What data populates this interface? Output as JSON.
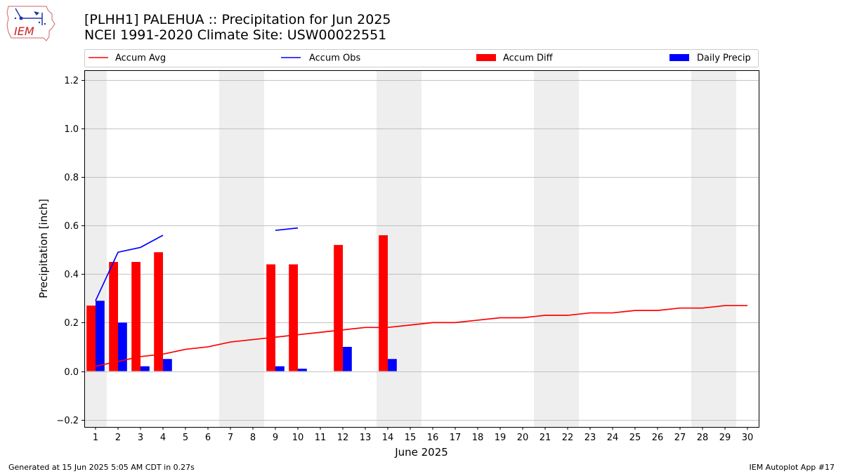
{
  "header": {
    "title_line1": "[PLHH1] PALEHUA :: Precipitation for Jun 2025",
    "title_line2": "NCEI 1991-2020 Climate Site: USW00022551",
    "logo_text": "IEM"
  },
  "footer": {
    "generated": "Generated at 15 Jun 2025 5:05 AM CDT in 0.27s",
    "app": "IEM Autoplot App #17"
  },
  "colors": {
    "accum_avg": "#ff0000",
    "accum_obs": "#0000ff",
    "accum_diff": "#ff0000",
    "daily_precip": "#0000ff",
    "weekend_shade": "#eeeeee",
    "grid": "#b0b0b0"
  },
  "chart_data": {
    "type": "bar",
    "xlabel": "June 2025",
    "ylabel": "Precipitation [inch]",
    "ylim": [
      -0.23,
      1.24
    ],
    "xlim": [
      0.5,
      30.5
    ],
    "yticks": [
      "−0.2",
      "0.0",
      "0.2",
      "0.4",
      "0.6",
      "0.8",
      "1.0",
      "1.2"
    ],
    "ytick_values": [
      -0.2,
      0.0,
      0.2,
      0.4,
      0.6,
      0.8,
      1.0,
      1.2
    ],
    "x": [
      1,
      2,
      3,
      4,
      5,
      6,
      7,
      8,
      9,
      10,
      11,
      12,
      13,
      14,
      15,
      16,
      17,
      18,
      19,
      20,
      21,
      22,
      23,
      24,
      25,
      26,
      27,
      28,
      29,
      30
    ],
    "xtick_labels": [
      "1",
      "2",
      "3",
      "4",
      "5",
      "6",
      "7",
      "8",
      "9",
      "10",
      "11",
      "12",
      "13",
      "14",
      "15",
      "16",
      "17",
      "18",
      "19",
      "20",
      "21",
      "22",
      "23",
      "24",
      "25",
      "26",
      "27",
      "28",
      "29",
      "30"
    ],
    "grid": "horizontal",
    "legend_position": "top",
    "shaded_days": [
      [
        0.5,
        1.5
      ],
      [
        6.5,
        8.5
      ],
      [
        13.5,
        15.5
      ],
      [
        20.5,
        22.5
      ],
      [
        27.5,
        29.5
      ]
    ],
    "legend": [
      "Accum Avg",
      "Accum Obs",
      "Accum Diff",
      "Daily Precip"
    ],
    "series": [
      {
        "name": "Accum Avg",
        "kind": "line",
        "values": [
          0.02,
          0.04,
          0.06,
          0.07,
          0.09,
          0.1,
          0.12,
          0.13,
          0.14,
          0.15,
          0.16,
          0.17,
          0.18,
          0.18,
          0.19,
          0.2,
          0.2,
          0.21,
          0.22,
          0.22,
          0.23,
          0.23,
          0.24,
          0.24,
          0.25,
          0.25,
          0.26,
          0.26,
          0.27,
          0.27
        ]
      },
      {
        "name": "Accum Obs",
        "kind": "line",
        "values": [
          0.29,
          0.49,
          0.51,
          0.56,
          null,
          null,
          null,
          null,
          0.58,
          0.59,
          null,
          null,
          null,
          null,
          null,
          null,
          null,
          null,
          null,
          null,
          null,
          null,
          null,
          null,
          null,
          null,
          null,
          null,
          null,
          null
        ]
      },
      {
        "name": "Accum Diff",
        "kind": "bar",
        "values": [
          0.27,
          0.45,
          0.45,
          0.49,
          null,
          null,
          null,
          null,
          0.44,
          0.44,
          null,
          0.52,
          null,
          0.56,
          null,
          null,
          null,
          null,
          null,
          null,
          null,
          null,
          null,
          null,
          null,
          null,
          null,
          null,
          null,
          null
        ]
      },
      {
        "name": "Daily Precip",
        "kind": "bar",
        "values": [
          0.29,
          0.2,
          0.02,
          0.05,
          null,
          null,
          null,
          null,
          0.02,
          0.01,
          null,
          0.1,
          null,
          0.05,
          null,
          null,
          null,
          null,
          null,
          null,
          null,
          null,
          null,
          null,
          null,
          null,
          null,
          null,
          null,
          null
        ]
      }
    ]
  }
}
